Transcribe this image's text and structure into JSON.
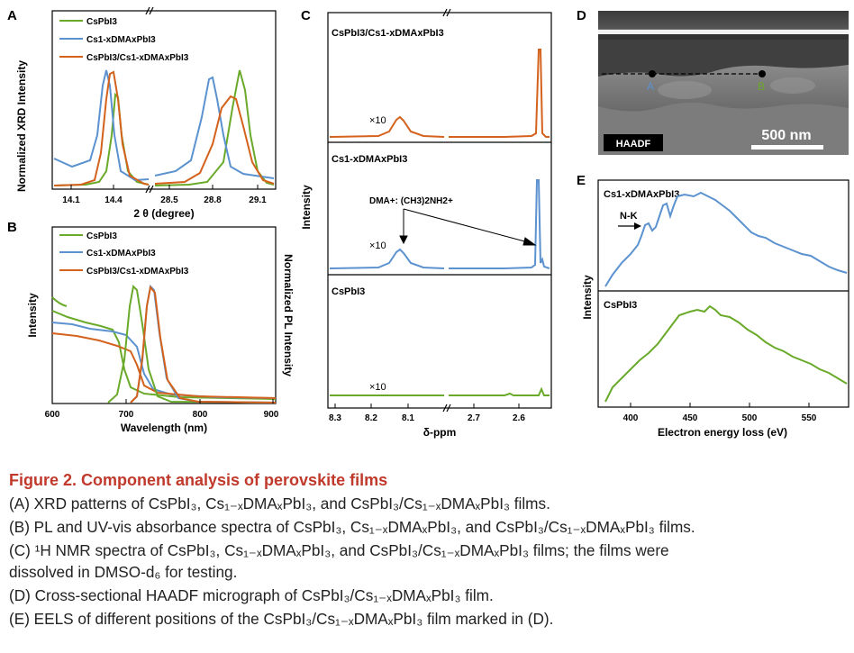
{
  "figure": {
    "panels": [
      "A",
      "B",
      "C",
      "D",
      "E"
    ],
    "colors": {
      "csPbI3": "#6aaa2a",
      "dma": "#5b92cf",
      "combo": "#d4621c",
      "eels_top": "#5b92cf",
      "eels_bottom": "#6aaa2a"
    },
    "a": {
      "ylabel": "Normalized XRD Intensity",
      "xlabel": "2 θ (degree)",
      "ticks": [
        "14.1",
        "14.4",
        "28.5",
        "28.8",
        "29.1"
      ],
      "legend": [
        "CsPbI3",
        "Cs1-xDMAxPbI3",
        "CsPbI3/Cs1-xDMAxPbI3"
      ]
    },
    "b": {
      "ylabel_left": "Intensity",
      "ylabel_right": "Normalized PL Intensity",
      "xlabel": "Wavelength (nm)",
      "ticks": [
        "600",
        "700",
        "800",
        "900"
      ],
      "legend": [
        "CsPbI3",
        "Cs1-xDMAxPbI3",
        "CsPbI3/Cs1-xDMAxPbI3"
      ]
    },
    "c": {
      "ylabel": "Intensity",
      "xlabel": "δ-ppm",
      "ticks": [
        "8.3",
        "8.2",
        "8.1",
        "2.7",
        "2.6"
      ],
      "labels": [
        "CsPbI3/Cs1-xDMAxPbI3",
        "Cs1-xDMAxPbI3",
        "CsPbI3"
      ],
      "multiplier": "×10",
      "annotation": "DMA+: (CH3)2NH2+"
    },
    "d": {
      "label": "HAADF",
      "scale": "500 nm",
      "point_a": "A",
      "point_b": "B"
    },
    "e": {
      "ylabel": "Intensity",
      "xlabel": "Electron energy loss (eV)",
      "ticks": [
        "400",
        "450",
        "500",
        "550"
      ],
      "labels": [
        "Cs1-xDMAxPbI3",
        "CsPbI3"
      ],
      "annotation": "N-K"
    }
  },
  "chart_data": [
    {
      "type": "line",
      "panel": "A",
      "title": "",
      "xlabel": "2 θ (degree)",
      "ylabel": "Normalized XRD Intensity",
      "series": [
        {
          "name": "CsPbI3",
          "peaks": [
            14.42,
            28.92
          ]
        },
        {
          "name": "Cs1-xDMAxPbI3",
          "peaks": [
            14.32,
            28.78
          ]
        },
        {
          "name": "CsPbI3/Cs1-xDMAxPbI3",
          "peaks": [
            14.36,
            28.88
          ]
        }
      ]
    },
    {
      "type": "line",
      "panel": "B",
      "xlabel": "Wavelength (nm)",
      "ylabel": "Intensity",
      "xlim": [
        600,
        900
      ],
      "series": [
        {
          "name": "CsPbI3",
          "pl_peak": 709
        },
        {
          "name": "Cs1-xDMAxPbI3",
          "pl_peak": 735
        },
        {
          "name": "CsPbI3/Cs1-xDMAxPbI3",
          "pl_peak": 735
        }
      ]
    },
    {
      "type": "line",
      "panel": "C",
      "xlabel": "δ-ppm",
      "ylabel": "Intensity",
      "series": [
        {
          "name": "CsPbI3/Cs1-xDMAxPbI3",
          "peaks": [
            8.1,
            2.54
          ]
        },
        {
          "name": "Cs1-xDMAxPbI3",
          "peaks": [
            8.1,
            2.54
          ]
        },
        {
          "name": "CsPbI3",
          "peaks": [
            2.54
          ]
        }
      ]
    },
    {
      "type": "line",
      "panel": "E",
      "xlabel": "Electron energy loss (eV)",
      "ylabel": "Intensity",
      "xlim": [
        375,
        575
      ],
      "series": [
        {
          "name": "Cs1-xDMAxPbI3",
          "peak": 460
        },
        {
          "name": "CsPbI3",
          "peak": 465
        }
      ]
    }
  ],
  "caption": {
    "title": "Figure 2. Component analysis of perovskite films",
    "a": "(A) XRD patterns of CsPbI₃, Cs₁₋ₓDMAₓPbI₃, and CsPbI₃/Cs₁₋ₓDMAₓPbI₃ films.",
    "b": "(B) PL and UV-vis absorbance spectra of CsPbI₃, Cs₁₋ₓDMAₓPbI₃, and CsPbI₃/Cs₁₋ₓDMAₓPbI₃ films.",
    "c": "(C) ¹H NMR spectra of CsPbI₃, Cs₁₋ₓDMAₓPbI₃, and CsPbI₃/Cs₁₋ₓDMAₓPbI₃ films; the films were",
    "c2": "dissolved in DMSO-d₆ for testing.",
    "d": "(D) Cross-sectional HAADF micrograph of CsPbI₃/Cs₁₋ₓDMAₓPbI₃ film.",
    "e": "(E) EELS of different positions of the CsPbI₃/Cs₁₋ₓDMAₓPbI₃ film marked in (D)."
  }
}
